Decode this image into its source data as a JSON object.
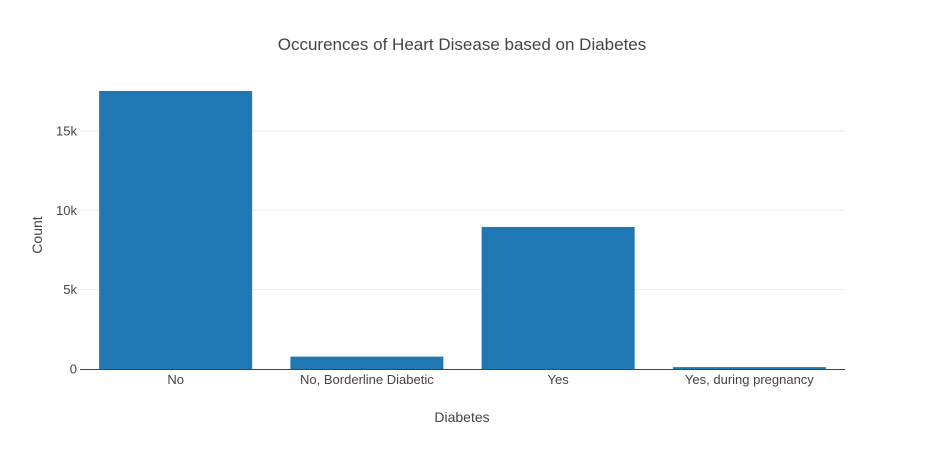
{
  "chart_data": {
    "type": "bar",
    "title": "Occurences of Heart Disease based on Diabetes",
    "xlabel": "Diabetes",
    "ylabel": "Count",
    "categories": [
      "No",
      "No, Borderline Diabetic",
      "Yes",
      "Yes, during pregnancy"
    ],
    "values": [
      17520,
      780,
      8950,
      120
    ],
    "ylim": [
      0,
      18400
    ],
    "yticks": [
      0,
      5000,
      10000,
      15000
    ],
    "ytick_labels": [
      "0",
      "5k",
      "10k",
      "15k"
    ],
    "grid": true,
    "legend": false,
    "bar_color": "#1f77b4"
  }
}
